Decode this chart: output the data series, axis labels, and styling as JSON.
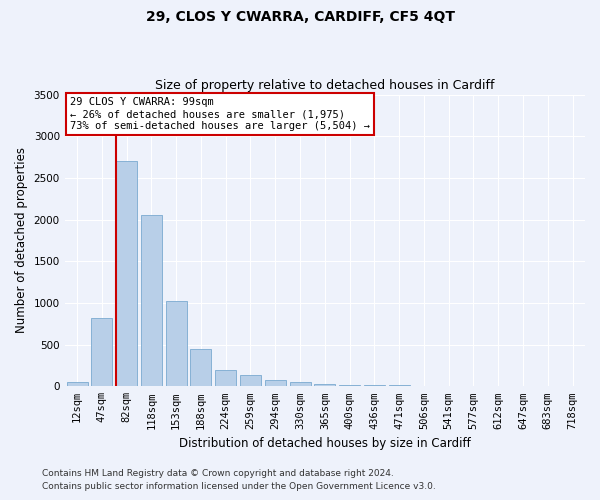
{
  "title": "29, CLOS Y CWARRA, CARDIFF, CF5 4QT",
  "subtitle": "Size of property relative to detached houses in Cardiff",
  "xlabel": "Distribution of detached houses by size in Cardiff",
  "ylabel": "Number of detached properties",
  "categories": [
    "12sqm",
    "47sqm",
    "82sqm",
    "118sqm",
    "153sqm",
    "188sqm",
    "224sqm",
    "259sqm",
    "294sqm",
    "330sqm",
    "365sqm",
    "400sqm",
    "436sqm",
    "471sqm",
    "506sqm",
    "541sqm",
    "577sqm",
    "612sqm",
    "647sqm",
    "683sqm",
    "718sqm"
  ],
  "values": [
    50,
    820,
    2700,
    2050,
    1020,
    450,
    200,
    130,
    70,
    55,
    30,
    20,
    15,
    10,
    5,
    5,
    3,
    2,
    1,
    1,
    0
  ],
  "bar_color": "#b8cfe8",
  "bar_edge_color": "#7aaad0",
  "vline_color": "#cc0000",
  "ylim": [
    0,
    3500
  ],
  "yticks": [
    0,
    500,
    1000,
    1500,
    2000,
    2500,
    3000,
    3500
  ],
  "annotation_text": "29 CLOS Y CWARRA: 99sqm\n← 26% of detached houses are smaller (1,975)\n73% of semi-detached houses are larger (5,504) →",
  "annotation_box_color": "#ffffff",
  "annotation_border_color": "#cc0000",
  "footnote1": "Contains HM Land Registry data © Crown copyright and database right 2024.",
  "footnote2": "Contains public sector information licensed under the Open Government Licence v3.0.",
  "background_color": "#eef2fb",
  "plot_bg_color": "#eef2fb",
  "grid_color": "#ffffff",
  "title_fontsize": 10,
  "subtitle_fontsize": 9,
  "label_fontsize": 8.5,
  "tick_fontsize": 7.5,
  "footnote_fontsize": 6.5
}
